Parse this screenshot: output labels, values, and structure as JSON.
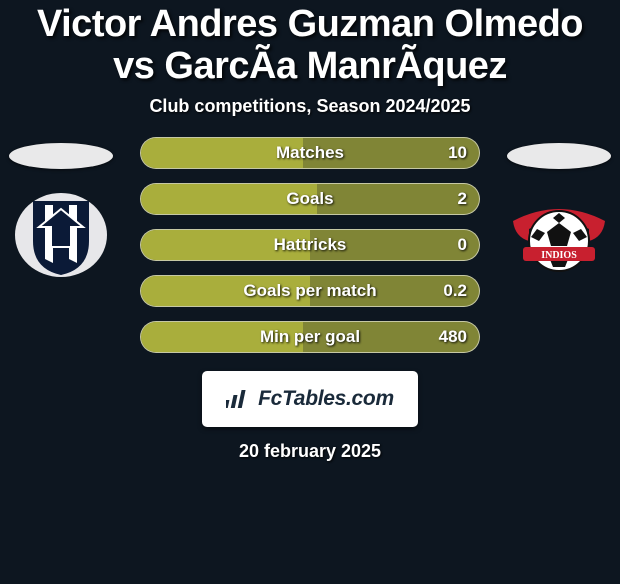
{
  "colors": {
    "background": "#0d1620",
    "pill_base": "#808536",
    "pill_fill": "#a9ae3c",
    "pill_border": "rgba(255,255,255,0.55)",
    "ellipse": "#e9e9ea",
    "footer_bg": "#ffffff",
    "footer_text": "#1a2a3a",
    "text": "#ffffff"
  },
  "title": "Victor Andres Guzman Olmedo vs GarcÃ­a ManrÃ­quez",
  "subtitle": "Club competitions, Season 2024/2025",
  "left_team": {
    "name": "monterrey",
    "crest_colors": {
      "shield": "#0b1a37",
      "stripe": "#ffffff",
      "border": "#d9d9dc"
    }
  },
  "right_team": {
    "name": "indios",
    "crest_colors": {
      "ball": "#111111",
      "ball_panel": "#ffffff",
      "ribbon": "#c8202f",
      "ribbon_text": "#ffffff"
    }
  },
  "stats": [
    {
      "label": "Matches",
      "left_pct": 48,
      "right_value": "10"
    },
    {
      "label": "Goals",
      "left_pct": 52,
      "right_value": "2"
    },
    {
      "label": "Hattricks",
      "left_pct": 50,
      "right_value": "0"
    },
    {
      "label": "Goals per match",
      "left_pct": 50,
      "right_value": "0.2"
    },
    {
      "label": "Min per goal",
      "left_pct": 48,
      "right_value": "480"
    }
  ],
  "stat_style": {
    "pill_width": 340,
    "pill_height": 32,
    "pill_radius": 16,
    "label_fontsize": 17,
    "value_fontsize": 17,
    "gap": 14
  },
  "brand": {
    "name": "FcTables.com",
    "icon": "bars-icon"
  },
  "date": "20 february 2025"
}
